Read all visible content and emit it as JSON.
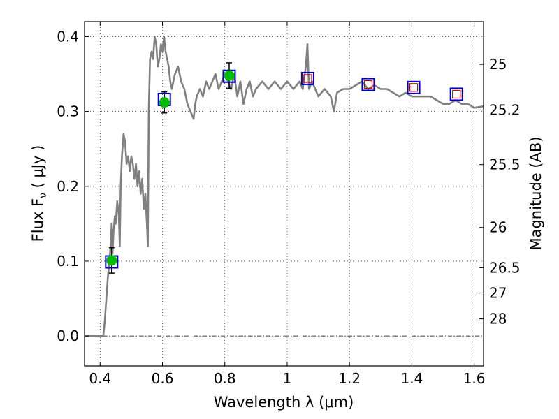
{
  "chart_data": {
    "type": "line",
    "xlabel": "Wavelength  λ (μm)",
    "ylabel": "Flux  F",
    "ylabel_sub": "ν",
    "ylabel_units": " ( μJy )",
    "y2label": "Magnitude (AB)",
    "xlim": [
      0.35,
      1.63
    ],
    "ylim": [
      -0.04,
      0.42
    ],
    "grid": true,
    "x_ticks": [
      0.4,
      0.6,
      0.8,
      1.0,
      1.2,
      1.4,
      1.6
    ],
    "x_tick_labels": [
      "0.4",
      "0.6",
      "0.8",
      "1",
      "1.2",
      "1.4",
      "1.6"
    ],
    "y_ticks": [
      0.0,
      0.1,
      0.2,
      0.3,
      0.4
    ],
    "y_tick_labels": [
      "0.0",
      "0.1",
      "0.2",
      "0.3",
      "0.4"
    ],
    "mag_ticks": [
      {
        "label": "25",
        "flux": 0.363
      },
      {
        "label": "25.2",
        "flux": 0.302
      },
      {
        "label": "25.5",
        "flux": 0.229
      },
      {
        "label": "26",
        "flux": 0.145
      },
      {
        "label": "26.5",
        "flux": 0.0912
      },
      {
        "label": "27",
        "flux": 0.0575
      },
      {
        "label": "28",
        "flux": 0.0229
      }
    ],
    "zero_line": 0.0,
    "sed_model": {
      "color": "#808080",
      "x": [
        0.35,
        0.41,
        0.415,
        0.42,
        0.425,
        0.43,
        0.435,
        0.437,
        0.44,
        0.443,
        0.447,
        0.45,
        0.455,
        0.46,
        0.463,
        0.466,
        0.47,
        0.475,
        0.48,
        0.485,
        0.49,
        0.495,
        0.5,
        0.505,
        0.51,
        0.515,
        0.52,
        0.525,
        0.53,
        0.535,
        0.54,
        0.545,
        0.55,
        0.553,
        0.556,
        0.56,
        0.565,
        0.57,
        0.575,
        0.58,
        0.585,
        0.59,
        0.595,
        0.6,
        0.605,
        0.61,
        0.615,
        0.62,
        0.625,
        0.63,
        0.64,
        0.65,
        0.66,
        0.67,
        0.68,
        0.69,
        0.7,
        0.705,
        0.71,
        0.72,
        0.73,
        0.74,
        0.75,
        0.76,
        0.77,
        0.78,
        0.79,
        0.8,
        0.81,
        0.82,
        0.83,
        0.84,
        0.85,
        0.86,
        0.87,
        0.88,
        0.89,
        0.9,
        0.92,
        0.94,
        0.96,
        0.98,
        1.0,
        1.02,
        1.04,
        1.05,
        1.06,
        1.065,
        1.07,
        1.08,
        1.1,
        1.12,
        1.14,
        1.15,
        1.16,
        1.18,
        1.2,
        1.22,
        1.24,
        1.26,
        1.28,
        1.3,
        1.32,
        1.34,
        1.36,
        1.38,
        1.4,
        1.42,
        1.44,
        1.46,
        1.48,
        1.5,
        1.52,
        1.54,
        1.56,
        1.58,
        1.6,
        1.63
      ],
      "y": [
        0.0,
        0.0,
        0.02,
        0.05,
        0.08,
        0.1,
        0.13,
        0.15,
        0.11,
        0.14,
        0.16,
        0.15,
        0.18,
        0.16,
        0.12,
        0.2,
        0.24,
        0.27,
        0.26,
        0.23,
        0.24,
        0.22,
        0.24,
        0.23,
        0.21,
        0.23,
        0.2,
        0.22,
        0.19,
        0.21,
        0.17,
        0.19,
        0.15,
        0.12,
        0.3,
        0.37,
        0.38,
        0.37,
        0.4,
        0.39,
        0.36,
        0.37,
        0.39,
        0.38,
        0.4,
        0.38,
        0.37,
        0.36,
        0.34,
        0.33,
        0.35,
        0.36,
        0.34,
        0.33,
        0.31,
        0.3,
        0.29,
        0.31,
        0.32,
        0.33,
        0.32,
        0.34,
        0.33,
        0.34,
        0.35,
        0.33,
        0.34,
        0.35,
        0.34,
        0.33,
        0.35,
        0.32,
        0.34,
        0.31,
        0.33,
        0.34,
        0.32,
        0.33,
        0.34,
        0.33,
        0.34,
        0.33,
        0.34,
        0.33,
        0.34,
        0.33,
        0.36,
        0.39,
        0.33,
        0.34,
        0.32,
        0.33,
        0.32,
        0.3,
        0.325,
        0.33,
        0.33,
        0.335,
        0.34,
        0.33,
        0.335,
        0.33,
        0.33,
        0.325,
        0.32,
        0.325,
        0.32,
        0.32,
        0.32,
        0.32,
        0.315,
        0.31,
        0.31,
        0.315,
        0.31,
        0.31,
        0.305,
        0.307
      ]
    },
    "model_photometry": {
      "edge_color": "#0000cc",
      "points": [
        {
          "x": 0.437,
          "y": 0.099
        },
        {
          "x": 0.606,
          "y": 0.316
        },
        {
          "x": 0.814,
          "y": 0.347
        },
        {
          "x": 1.066,
          "y": 0.344
        },
        {
          "x": 1.26,
          "y": 0.336
        },
        {
          "x": 1.406,
          "y": 0.332
        },
        {
          "x": 1.543,
          "y": 0.323
        }
      ]
    },
    "observed_photometry": {
      "color": "#00bb00",
      "points": [
        {
          "x": 0.437,
          "y": 0.101,
          "err": 0.017
        },
        {
          "x": 0.606,
          "y": 0.312,
          "err": 0.014
        },
        {
          "x": 0.814,
          "y": 0.348,
          "err": 0.017
        }
      ]
    },
    "upper_limits": {
      "edge_color": "#cc0000",
      "points": [
        {
          "x": 1.066,
          "y": 0.344
        },
        {
          "x": 1.26,
          "y": 0.336
        },
        {
          "x": 1.406,
          "y": 0.332
        },
        {
          "x": 1.543,
          "y": 0.323
        }
      ]
    }
  }
}
